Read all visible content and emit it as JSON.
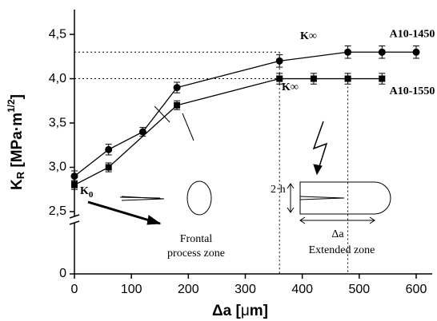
{
  "chart_data": {
    "type": "line",
    "x_label": {
      "main": "Δa [",
      "mu": "μ",
      "end": "m]"
    },
    "y_label": {
      "main": "K",
      "sub": "R",
      "unit": " [MPa·m",
      "sup": "1/2",
      "end": "]"
    },
    "xlim": [
      0,
      600
    ],
    "xticks": [
      0,
      100,
      200,
      300,
      400,
      500,
      600
    ],
    "ylim": [
      0,
      4.78
    ],
    "y_axis_break": true,
    "yticks": [
      0,
      {
        "value": 2.5,
        "label": "2,5"
      },
      {
        "value": 3.0,
        "label": "3,0"
      },
      {
        "value": 3.5,
        "label": "3,5"
      },
      {
        "value": 4.0,
        "label": "4,0"
      },
      {
        "value": 4.5,
        "label": "4,5"
      }
    ],
    "series": [
      {
        "name": "A10-1450",
        "marker": "circle",
        "color": "#000000",
        "x": [
          0,
          60,
          120,
          180,
          360,
          480,
          540,
          600
        ],
        "values": [
          2.9,
          3.2,
          3.4,
          3.9,
          4.2,
          4.3,
          4.3,
          4.3
        ],
        "errors": [
          0.06,
          0.06,
          0.05,
          0.06,
          0.07,
          0.07,
          0.07,
          0.07
        ]
      },
      {
        "name": "A10-1550",
        "marker": "square",
        "color": "#000000",
        "x": [
          0,
          60,
          180,
          360,
          420,
          480,
          540
        ],
        "values": [
          2.8,
          3.0,
          3.7,
          4.0,
          4.0,
          4.0,
          4.0
        ],
        "errors": [
          0.05,
          0.05,
          0.05,
          0.06,
          0.06,
          0.06,
          0.06
        ]
      }
    ],
    "reference_lines": {
      "y": [
        4.3,
        4.0
      ],
      "x": [
        360,
        480
      ]
    },
    "annotations": {
      "k_inf_1450": "K∞",
      "k_inf_1550": "K∞",
      "k0": {
        "main": "K",
        "sub": "0"
      },
      "frontal": [
        "Frontal",
        "process zone"
      ],
      "two_h": "2·h",
      "delta_a": "Δa",
      "extended": "Extended zone"
    }
  }
}
